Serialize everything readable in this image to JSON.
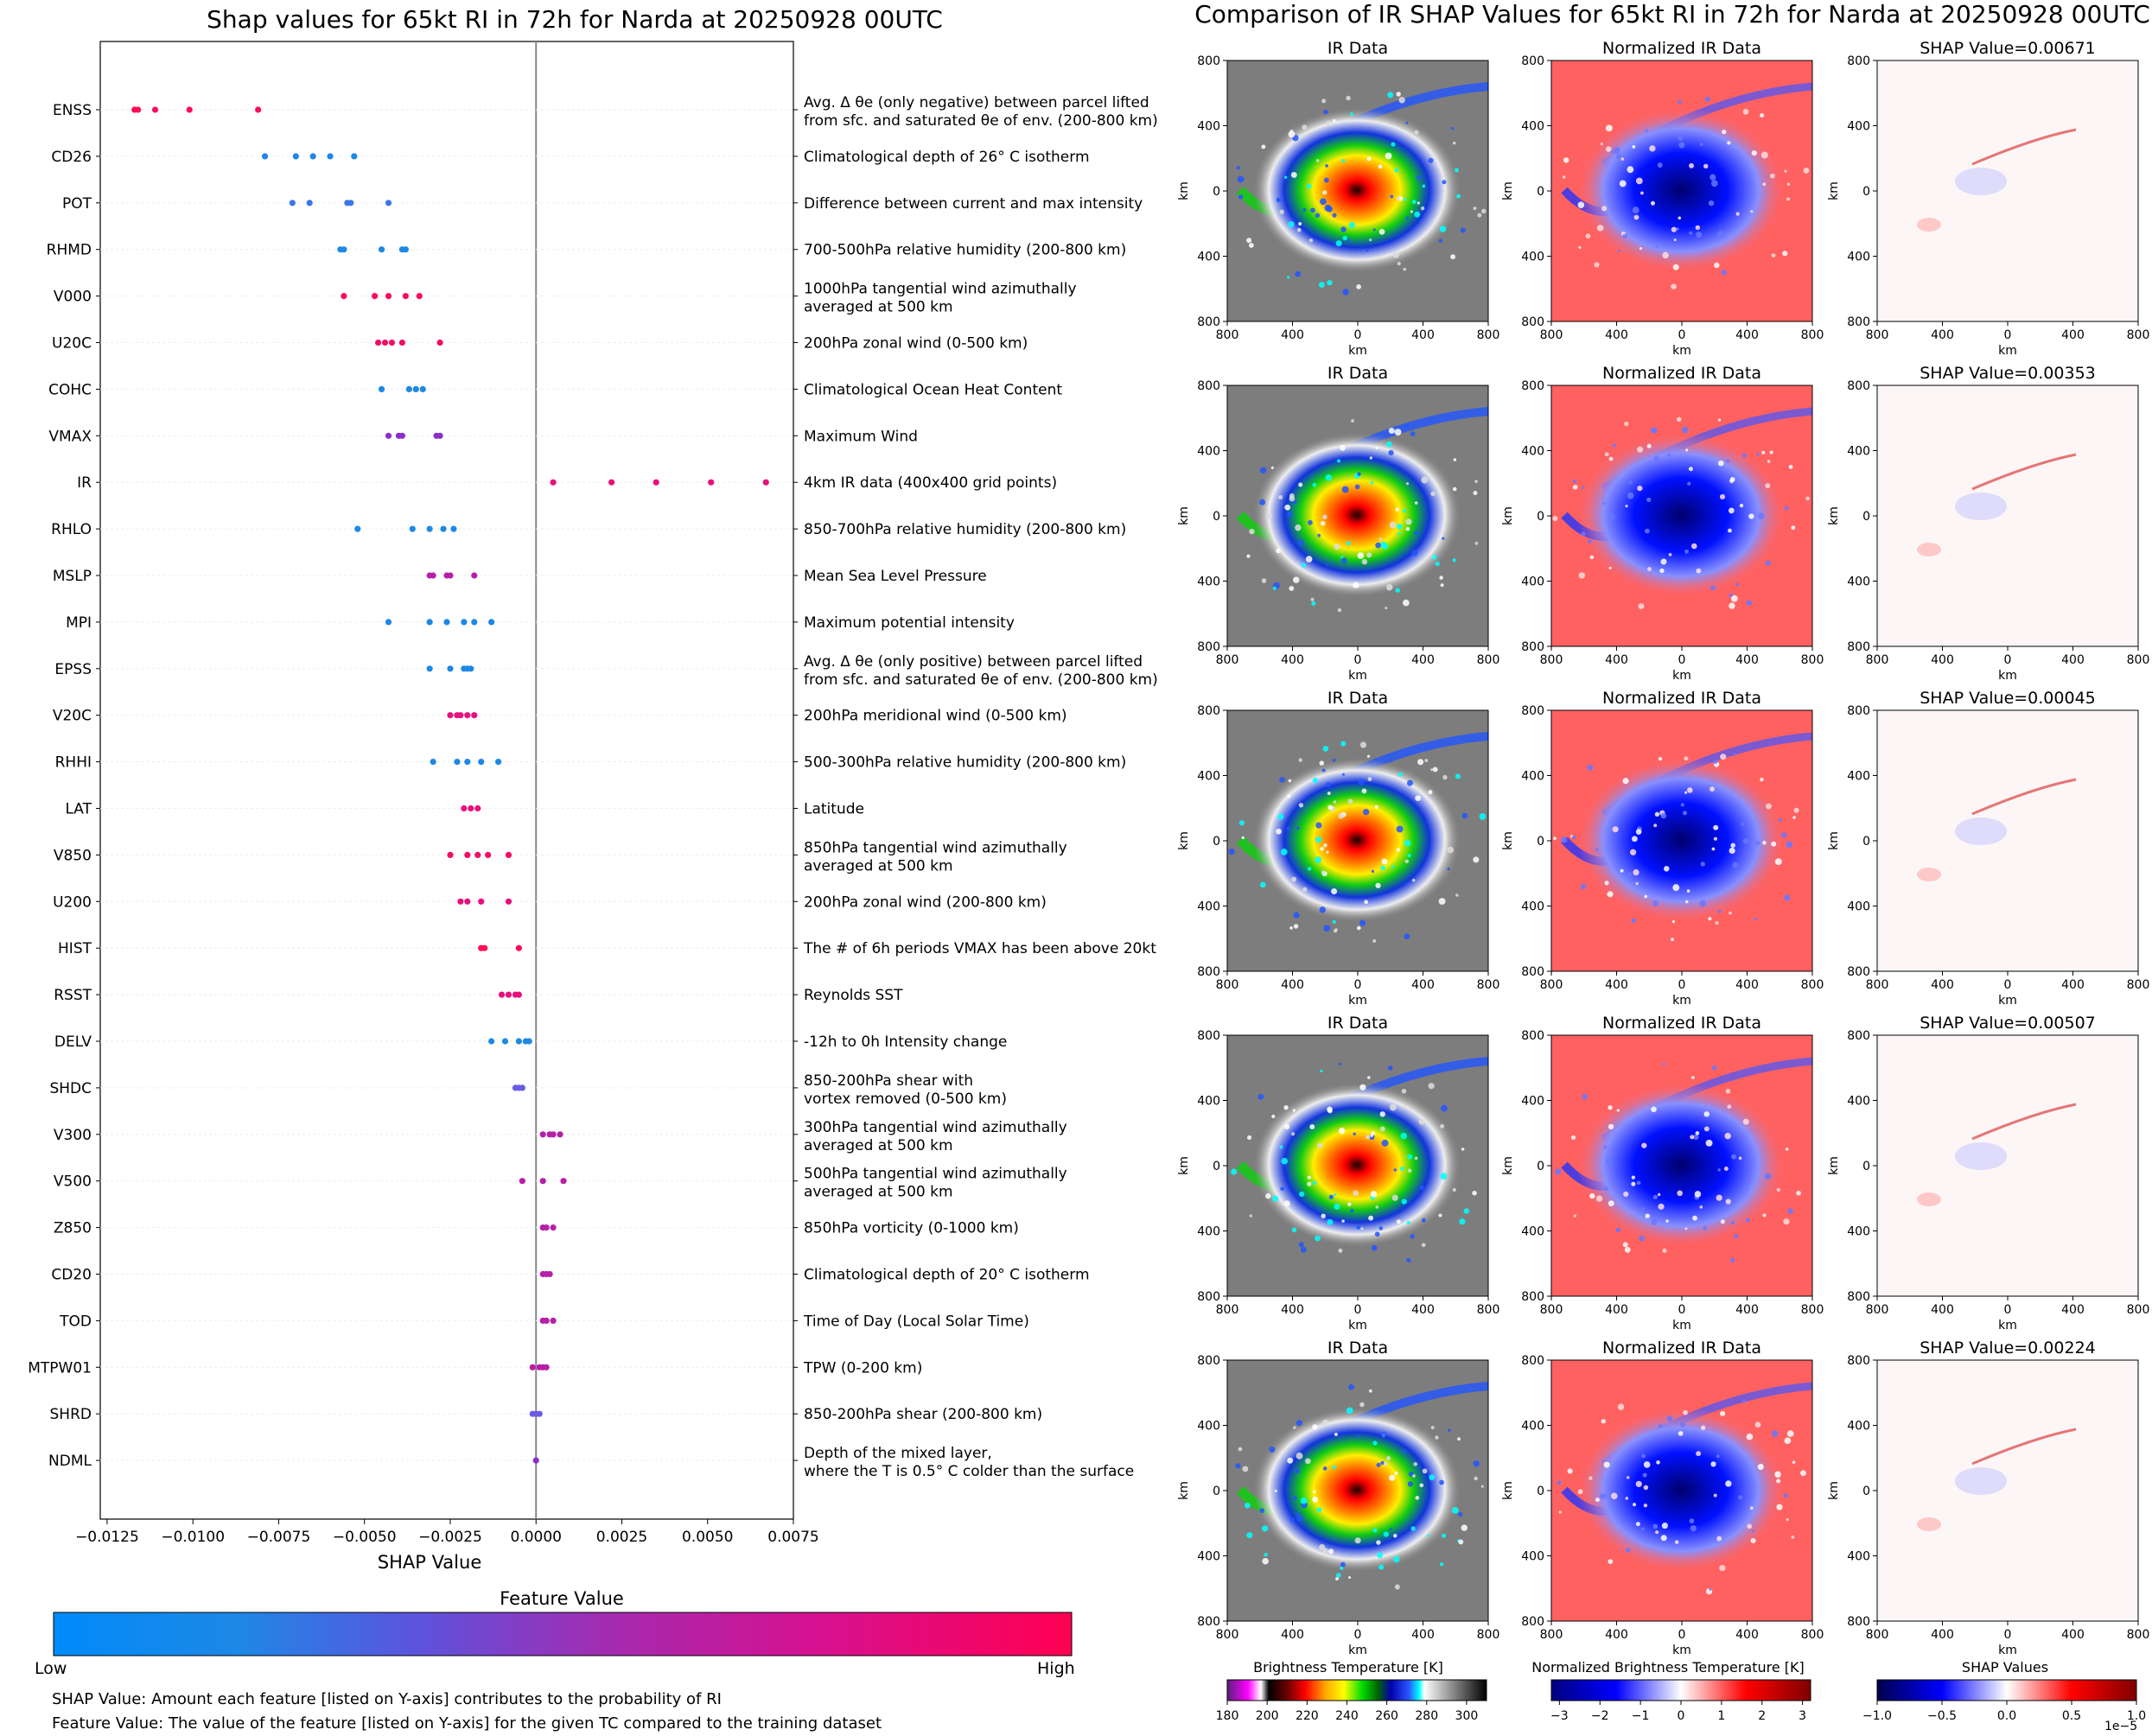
{
  "left_panel": {
    "title": "Shap values for 65kt RI in 72h for Narda at 20250928 00UTC",
    "xlabel": "SHAP Value",
    "x_ticks": [
      "−0.0125",
      "−0.0100",
      "−0.0075",
      "−0.0050",
      "−0.0025",
      "0.0000",
      "0.0025",
      "0.0050",
      "0.0075"
    ],
    "colorbar_title": "Feature Value",
    "colorbar_low": "Low",
    "colorbar_high": "High",
    "note1": "SHAP Value: Amount each feature [listed on Y-axis] contributes to the probability of RI",
    "note2": "Feature Value: The value of the feature [listed on Y-axis] for the given TC compared to the training dataset"
  },
  "chart_data": [
    {
      "type": "scatter",
      "subtype": "shap-beeswarm",
      "title": "Shap values for 65kt RI in 72h for Narda at 20250928 00UTC",
      "xlabel": "SHAP Value",
      "ylabel": "",
      "xlim": [
        -0.0127,
        0.0075
      ],
      "grid": false,
      "features": [
        {
          "name": "ENSS",
          "description": [
            "Avg. Δ θe (only negative) between parcel lifted",
            "from sfc. and saturated θe of env. (200-800 km)"
          ],
          "color": "#ff0b57",
          "shap": [
            -0.0117,
            -0.0116,
            -0.0111,
            -0.0101,
            -0.0081
          ]
        },
        {
          "name": "CD26",
          "description": [
            "Climatological depth of 26° C isotherm"
          ],
          "color": "#1e88e5",
          "shap": [
            -0.0079,
            -0.007,
            -0.0065,
            -0.006,
            -0.0053
          ]
        },
        {
          "name": "POT",
          "description": [
            "Difference between current and max intensity"
          ],
          "color": "#3a77ea",
          "shap": [
            -0.0071,
            -0.0066,
            -0.0055,
            -0.0054,
            -0.0043
          ]
        },
        {
          "name": "RHMD",
          "description": [
            "700-500hPa relative humidity (200-800 km)"
          ],
          "color": "#1e88e5",
          "shap": [
            -0.0057,
            -0.0056,
            -0.0045,
            -0.0039,
            -0.0038
          ]
        },
        {
          "name": "V000",
          "description": [
            "1000hPa tangential wind azimuthally",
            "averaged at 500 km"
          ],
          "color": "#ff0b57",
          "shap": [
            -0.0056,
            -0.0047,
            -0.0043,
            -0.0038,
            -0.0034
          ]
        },
        {
          "name": "U20C",
          "description": [
            "200hPa zonal wind (0-500 km)"
          ],
          "color": "#f50c65",
          "shap": [
            -0.0046,
            -0.0044,
            -0.0042,
            -0.0039,
            -0.0028
          ]
        },
        {
          "name": "COHC",
          "description": [
            "Climatological Ocean Heat Content"
          ],
          "color": "#1e88e5",
          "shap": [
            -0.0045,
            -0.0037,
            -0.0035,
            -0.0033
          ]
        },
        {
          "name": "VMAX",
          "description": [
            "Maximum Wind"
          ],
          "color": "#8a2fc9",
          "shap": [
            -0.0043,
            -0.004,
            -0.0039,
            -0.0029,
            -0.0028
          ]
        },
        {
          "name": "IR",
          "description": [
            "4km IR data (400x400 grid points)"
          ],
          "color": "#e8107c",
          "shap": [
            0.0005,
            0.0022,
            0.0035,
            0.0051,
            0.0067
          ]
        },
        {
          "name": "RHLO",
          "description": [
            "850-700hPa relative humidity (200-800 km)"
          ],
          "color": "#1e88e5",
          "shap": [
            -0.0052,
            -0.0036,
            -0.0031,
            -0.0027,
            -0.0024
          ]
        },
        {
          "name": "MSLP",
          "description": [
            "Mean Sea Level Pressure"
          ],
          "color": "#b81ea8",
          "shap": [
            -0.0031,
            -0.003,
            -0.0026,
            -0.0025,
            -0.0018
          ]
        },
        {
          "name": "MPI",
          "description": [
            "Maximum potential intensity"
          ],
          "color": "#1e88e5",
          "shap": [
            -0.0043,
            -0.0031,
            -0.0026,
            -0.0021,
            -0.0018,
            -0.0013
          ]
        },
        {
          "name": "EPSS",
          "description": [
            "Avg. Δ θe (only positive) between parcel lifted",
            "from sfc. and saturated θe of env. (200-800 km)"
          ],
          "color": "#1e88e5",
          "shap": [
            -0.0031,
            -0.0025,
            -0.0021,
            -0.002,
            -0.0019
          ]
        },
        {
          "name": "V20C",
          "description": [
            "200hPa meridional wind (0-500 km)"
          ],
          "color": "#e8107c",
          "shap": [
            -0.0025,
            -0.0023,
            -0.0022,
            -0.002,
            -0.0018
          ]
        },
        {
          "name": "RHHI",
          "description": [
            "500-300hPa relative humidity (200-800 km)"
          ],
          "color": "#1e88e5",
          "shap": [
            -0.003,
            -0.0023,
            -0.002,
            -0.0016,
            -0.0011
          ]
        },
        {
          "name": "LAT",
          "description": [
            "Latitude"
          ],
          "color": "#e8107c",
          "shap": [
            -0.0021,
            -0.0019,
            -0.0017
          ]
        },
        {
          "name": "V850",
          "description": [
            "850hPa tangential wind azimuthally",
            "averaged at 500 km"
          ],
          "color": "#f50c65",
          "shap": [
            -0.0025,
            -0.002,
            -0.0017,
            -0.0014,
            -0.0008
          ]
        },
        {
          "name": "U200",
          "description": [
            "200hPa zonal wind (200-800 km)"
          ],
          "color": "#e8107c",
          "shap": [
            -0.0022,
            -0.002,
            -0.0016,
            -0.0008
          ]
        },
        {
          "name": "HIST",
          "description": [
            "The # of 6h periods VMAX has been above 20kt"
          ],
          "color": "#ff0b57",
          "shap": [
            -0.0016,
            -0.0015,
            -0.0005
          ]
        },
        {
          "name": "RSST",
          "description": [
            "Reynolds SST"
          ],
          "color": "#e8107c",
          "shap": [
            -0.001,
            -0.0008,
            -0.0006,
            -0.0005
          ]
        },
        {
          "name": "DELV",
          "description": [
            "-12h to 0h Intensity change"
          ],
          "color": "#1e88e5",
          "shap": [
            -0.0013,
            -0.0009,
            -0.0005,
            -0.0003,
            -0.0002
          ]
        },
        {
          "name": "SHDC",
          "description": [
            "850-200hPa shear with",
            "vortex removed (0-500 km)"
          ],
          "color": "#6a5be3",
          "shap": [
            -0.0006,
            -0.0005,
            -0.0004
          ]
        },
        {
          "name": "V300",
          "description": [
            "300hPa tangential wind azimuthally",
            "averaged at 500 km"
          ],
          "color": "#b81ea8",
          "shap": [
            0.0002,
            0.0004,
            0.0005,
            0.0007
          ]
        },
        {
          "name": "V500",
          "description": [
            "500hPa tangential wind azimuthally",
            "averaged at 500 km"
          ],
          "color": "#b81ea8",
          "shap": [
            -0.0004,
            0.0002,
            0.0008
          ]
        },
        {
          "name": "Z850",
          "description": [
            "850hPa vorticity (0-1000 km)"
          ],
          "color": "#b81ea8",
          "shap": [
            0.0002,
            0.0003,
            0.0005
          ]
        },
        {
          "name": "CD20",
          "description": [
            "Climatological depth of 20° C isotherm"
          ],
          "color": "#b81ea8",
          "shap": [
            0.0002,
            0.0003,
            0.0004
          ]
        },
        {
          "name": "TOD",
          "description": [
            "Time of Day (Local Solar Time)"
          ],
          "color": "#b81ea8",
          "shap": [
            0.0002,
            0.0003,
            0.0005
          ]
        },
        {
          "name": "MTPW01",
          "description": [
            "TPW (0-200 km)"
          ],
          "color": "#b81ea8",
          "shap": [
            -0.0001,
            0.0001,
            0.0002,
            0.0003
          ]
        },
        {
          "name": "SHRD",
          "description": [
            "850-200hPa shear (200-800 km)"
          ],
          "color": "#6a5be3",
          "shap": [
            -0.0001,
            0.0,
            0.0001
          ]
        },
        {
          "name": "NDML",
          "description": [
            "Depth of the mixed layer,",
            "where the T is 0.5° C colder than the surface"
          ],
          "color": "#8a2fc9",
          "shap": [
            0.0
          ]
        }
      ]
    },
    {
      "type": "heatmap",
      "title": "Comparison of IR SHAP Values for 65kt RI in 72h for Narda at 20250928 00UTC",
      "column_titles": [
        "IR Data",
        "Normalized IR Data",
        "SHAP Value=0.00671",
        "SHAP Value=0.00353",
        "SHAP Value=0.00045",
        "SHAP Value=0.00507",
        "SHAP Value=0.00224"
      ],
      "row_shap_values": [
        "0.00671",
        "0.00353",
        "0.00045",
        "0.00507",
        "0.00224"
      ],
      "xlabel": "km",
      "ylabel": "km",
      "tick_labels": [
        "800",
        "400",
        "0",
        "400",
        "800"
      ],
      "colorbars": [
        {
          "title": "Brightness Temperature [K]",
          "ticks": [
            "180",
            "200",
            "220",
            "240",
            "260",
            "280",
            "300"
          ],
          "range": [
            180,
            310
          ]
        },
        {
          "title": "Normalized Brightness Temperature [K]",
          "ticks": [
            "−3",
            "−2",
            "−1",
            "0",
            "1",
            "2",
            "3"
          ],
          "range": [
            -3.2,
            3.2
          ]
        },
        {
          "title": "SHAP Values",
          "ticks": [
            "−1.0",
            "−0.5",
            "0.0",
            "0.5",
            "1.0"
          ],
          "range": [
            -1.0,
            1.0
          ],
          "exponent": "1e−5"
        }
      ]
    }
  ],
  "right_panel": {
    "title": "Comparison of IR SHAP Values for 65kt RI in 72h for Narda at 20250928 00UTC",
    "col1_title": "IR Data",
    "col2_title": "Normalized IR Data",
    "shap_prefix": "SHAP Value=",
    "axis_label": "km",
    "cb1_title": "Brightness Temperature [K]",
    "cb2_title": "Normalized Brightness Temperature [K]",
    "cb3_title": "SHAP Values",
    "cb3_exponent": "1e−5"
  },
  "colors": {
    "feature_low": "#008bfb",
    "feature_high": "#ff0052"
  }
}
